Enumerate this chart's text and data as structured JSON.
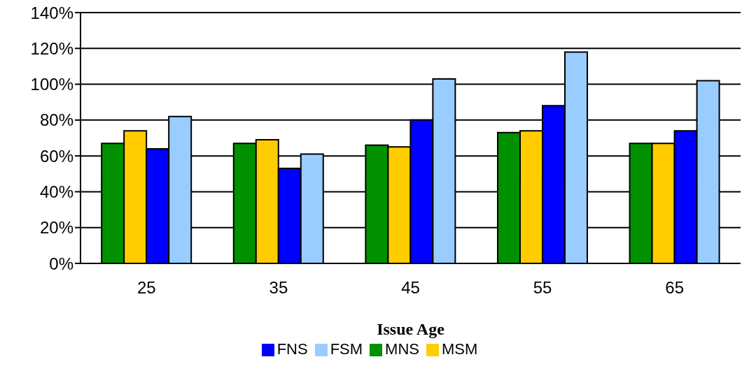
{
  "chart_data": {
    "type": "bar",
    "xlabel": "Issue Age",
    "categories": [
      "25",
      "35",
      "45",
      "55",
      "65"
    ],
    "series": [
      {
        "name": "MNS",
        "color": "#009000",
        "values": [
          67,
          67,
          66,
          73,
          67
        ]
      },
      {
        "name": "MSM",
        "color": "#ffcc00",
        "values": [
          74,
          69,
          65,
          74,
          67
        ]
      },
      {
        "name": "FNS",
        "color": "#0000ff",
        "values": [
          64,
          53,
          80,
          88,
          74
        ]
      },
      {
        "name": "FSM",
        "color": "#99ccff",
        "values": [
          82,
          61,
          103,
          118,
          102
        ]
      }
    ],
    "ylim": [
      0,
      140
    ],
    "yticks": [
      {
        "value": 0,
        "label": "0%"
      },
      {
        "value": 20,
        "label": "20%"
      },
      {
        "value": 40,
        "label": "40%"
      },
      {
        "value": 60,
        "label": "60%"
      },
      {
        "value": 80,
        "label": "80%"
      },
      {
        "value": 100,
        "label": "100%"
      },
      {
        "value": 120,
        "label": "120%"
      },
      {
        "value": 140,
        "label": "140%"
      }
    ],
    "grid": "y",
    "legend": "bottom"
  }
}
